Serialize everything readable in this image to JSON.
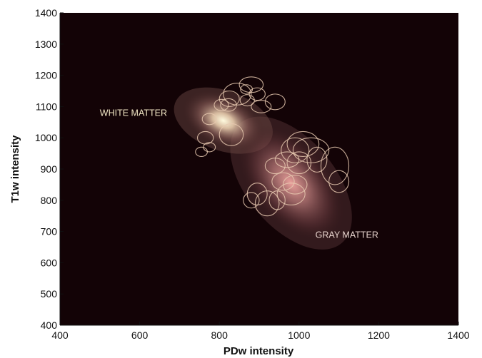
{
  "chart_data": {
    "type": "scatter",
    "title": "",
    "xlabel": "PDw intensity",
    "ylabel": "T1w intensity",
    "xlim": [
      400,
      1400
    ],
    "ylim": [
      400,
      1400
    ],
    "xticks": [
      400,
      600,
      800,
      1000,
      1200,
      1400
    ],
    "yticks": [
      400,
      500,
      600,
      700,
      800,
      900,
      1000,
      1100,
      1200,
      1300,
      1400
    ],
    "grid": false,
    "background_color": "#130306",
    "ellipse_color": "#e8c9b0",
    "annotations": [
      {
        "text": "WHITE MATTER",
        "x": 500,
        "y": 1070,
        "color": "#f1e6c4"
      },
      {
        "text": "GRAY MATTER",
        "x": 1120,
        "y": 680,
        "color": "#e7d3cd"
      }
    ],
    "density_components": [
      {
        "name": "white-matter",
        "center": [
          810,
          1055
        ],
        "peak_color": "#fffbe0"
      },
      {
        "name": "gray-matter",
        "center": [
          980,
          855
        ],
        "peak_color": "#f4a8a3"
      }
    ],
    "ellipses": [
      {
        "cx": 775,
        "cy": 1060,
        "rx": 18,
        "ry": 18
      },
      {
        "cx": 805,
        "cy": 1105,
        "rx": 18,
        "ry": 18
      },
      {
        "cx": 823,
        "cy": 1105,
        "rx": 20,
        "ry": 20
      },
      {
        "cx": 825,
        "cy": 1125,
        "rx": 25,
        "ry": 25
      },
      {
        "cx": 845,
        "cy": 1140,
        "rx": 35,
        "ry": 35
      },
      {
        "cx": 880,
        "cy": 1170,
        "rx": 30,
        "ry": 25
      },
      {
        "cx": 868,
        "cy": 1155,
        "rx": 15,
        "ry": 15
      },
      {
        "cx": 895,
        "cy": 1140,
        "rx": 20,
        "ry": 20
      },
      {
        "cx": 870,
        "cy": 1120,
        "rx": 18,
        "ry": 18
      },
      {
        "cx": 905,
        "cy": 1100,
        "rx": 25,
        "ry": 20
      },
      {
        "cx": 940,
        "cy": 1115,
        "rx": 25,
        "ry": 25
      },
      {
        "cx": 830,
        "cy": 1010,
        "rx": 30,
        "ry": 35
      },
      {
        "cx": 765,
        "cy": 1000,
        "rx": 20,
        "ry": 20
      },
      {
        "cx": 775,
        "cy": 970,
        "rx": 15,
        "ry": 15
      },
      {
        "cx": 755,
        "cy": 955,
        "rx": 15,
        "ry": 15
      },
      {
        "cx": 990,
        "cy": 960,
        "rx": 35,
        "ry": 40
      },
      {
        "cx": 1010,
        "cy": 980,
        "rx": 40,
        "ry": 40
      },
      {
        "cx": 1030,
        "cy": 960,
        "rx": 45,
        "ry": 40
      },
      {
        "cx": 970,
        "cy": 930,
        "rx": 30,
        "ry": 25
      },
      {
        "cx": 1000,
        "cy": 920,
        "rx": 30,
        "ry": 35
      },
      {
        "cx": 1045,
        "cy": 930,
        "rx": 25,
        "ry": 40
      },
      {
        "cx": 1090,
        "cy": 910,
        "rx": 35,
        "ry": 60
      },
      {
        "cx": 1100,
        "cy": 860,
        "rx": 25,
        "ry": 35
      },
      {
        "cx": 940,
        "cy": 910,
        "rx": 25,
        "ry": 25
      },
      {
        "cx": 960,
        "cy": 860,
        "rx": 28,
        "ry": 28
      },
      {
        "cx": 990,
        "cy": 850,
        "rx": 30,
        "ry": 30
      },
      {
        "cx": 980,
        "cy": 820,
        "rx": 35,
        "ry": 35
      },
      {
        "cx": 945,
        "cy": 800,
        "rx": 20,
        "ry": 30
      },
      {
        "cx": 920,
        "cy": 790,
        "rx": 30,
        "ry": 40
      },
      {
        "cx": 895,
        "cy": 820,
        "rx": 25,
        "ry": 35
      },
      {
        "cx": 880,
        "cy": 800,
        "rx": 20,
        "ry": 25
      }
    ]
  }
}
